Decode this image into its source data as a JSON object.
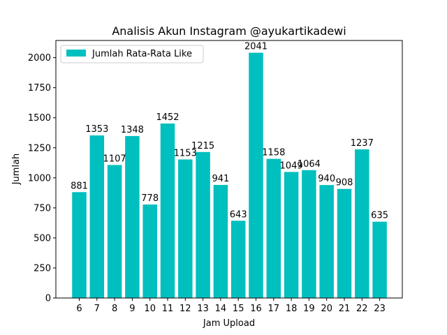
{
  "chart_data": {
    "type": "bar",
    "title": "Analisis Akun Instagram @ayukartikadewi",
    "xlabel": "Jam Upload",
    "ylabel": "Jumlah",
    "categories": [
      "6",
      "7",
      "8",
      "9",
      "10",
      "11",
      "12",
      "13",
      "14",
      "15",
      "16",
      "17",
      "18",
      "19",
      "20",
      "21",
      "22",
      "23"
    ],
    "series": [
      {
        "name": "Jumlah Rata-Rata Like",
        "color": "#00bfbf",
        "values": [
          881,
          1353,
          1107,
          1348,
          778,
          1452,
          1153,
          1215,
          941,
          643,
          2041,
          1158,
          1049,
          1064,
          940,
          908,
          1237,
          635
        ]
      }
    ],
    "data_labels": [
      "881",
      "1353",
      "1107",
      "1348",
      "778",
      "1452",
      "1153",
      "1215",
      "941",
      "643",
      "2041",
      "1158",
      "1049",
      "1064",
      "940",
      "908",
      "1237",
      "635"
    ],
    "ylim": [
      0,
      2143
    ],
    "yticks": [
      0,
      250,
      500,
      750,
      1000,
      1250,
      1500,
      1750,
      2000
    ],
    "grid": false,
    "legend_position": "top-left"
  }
}
